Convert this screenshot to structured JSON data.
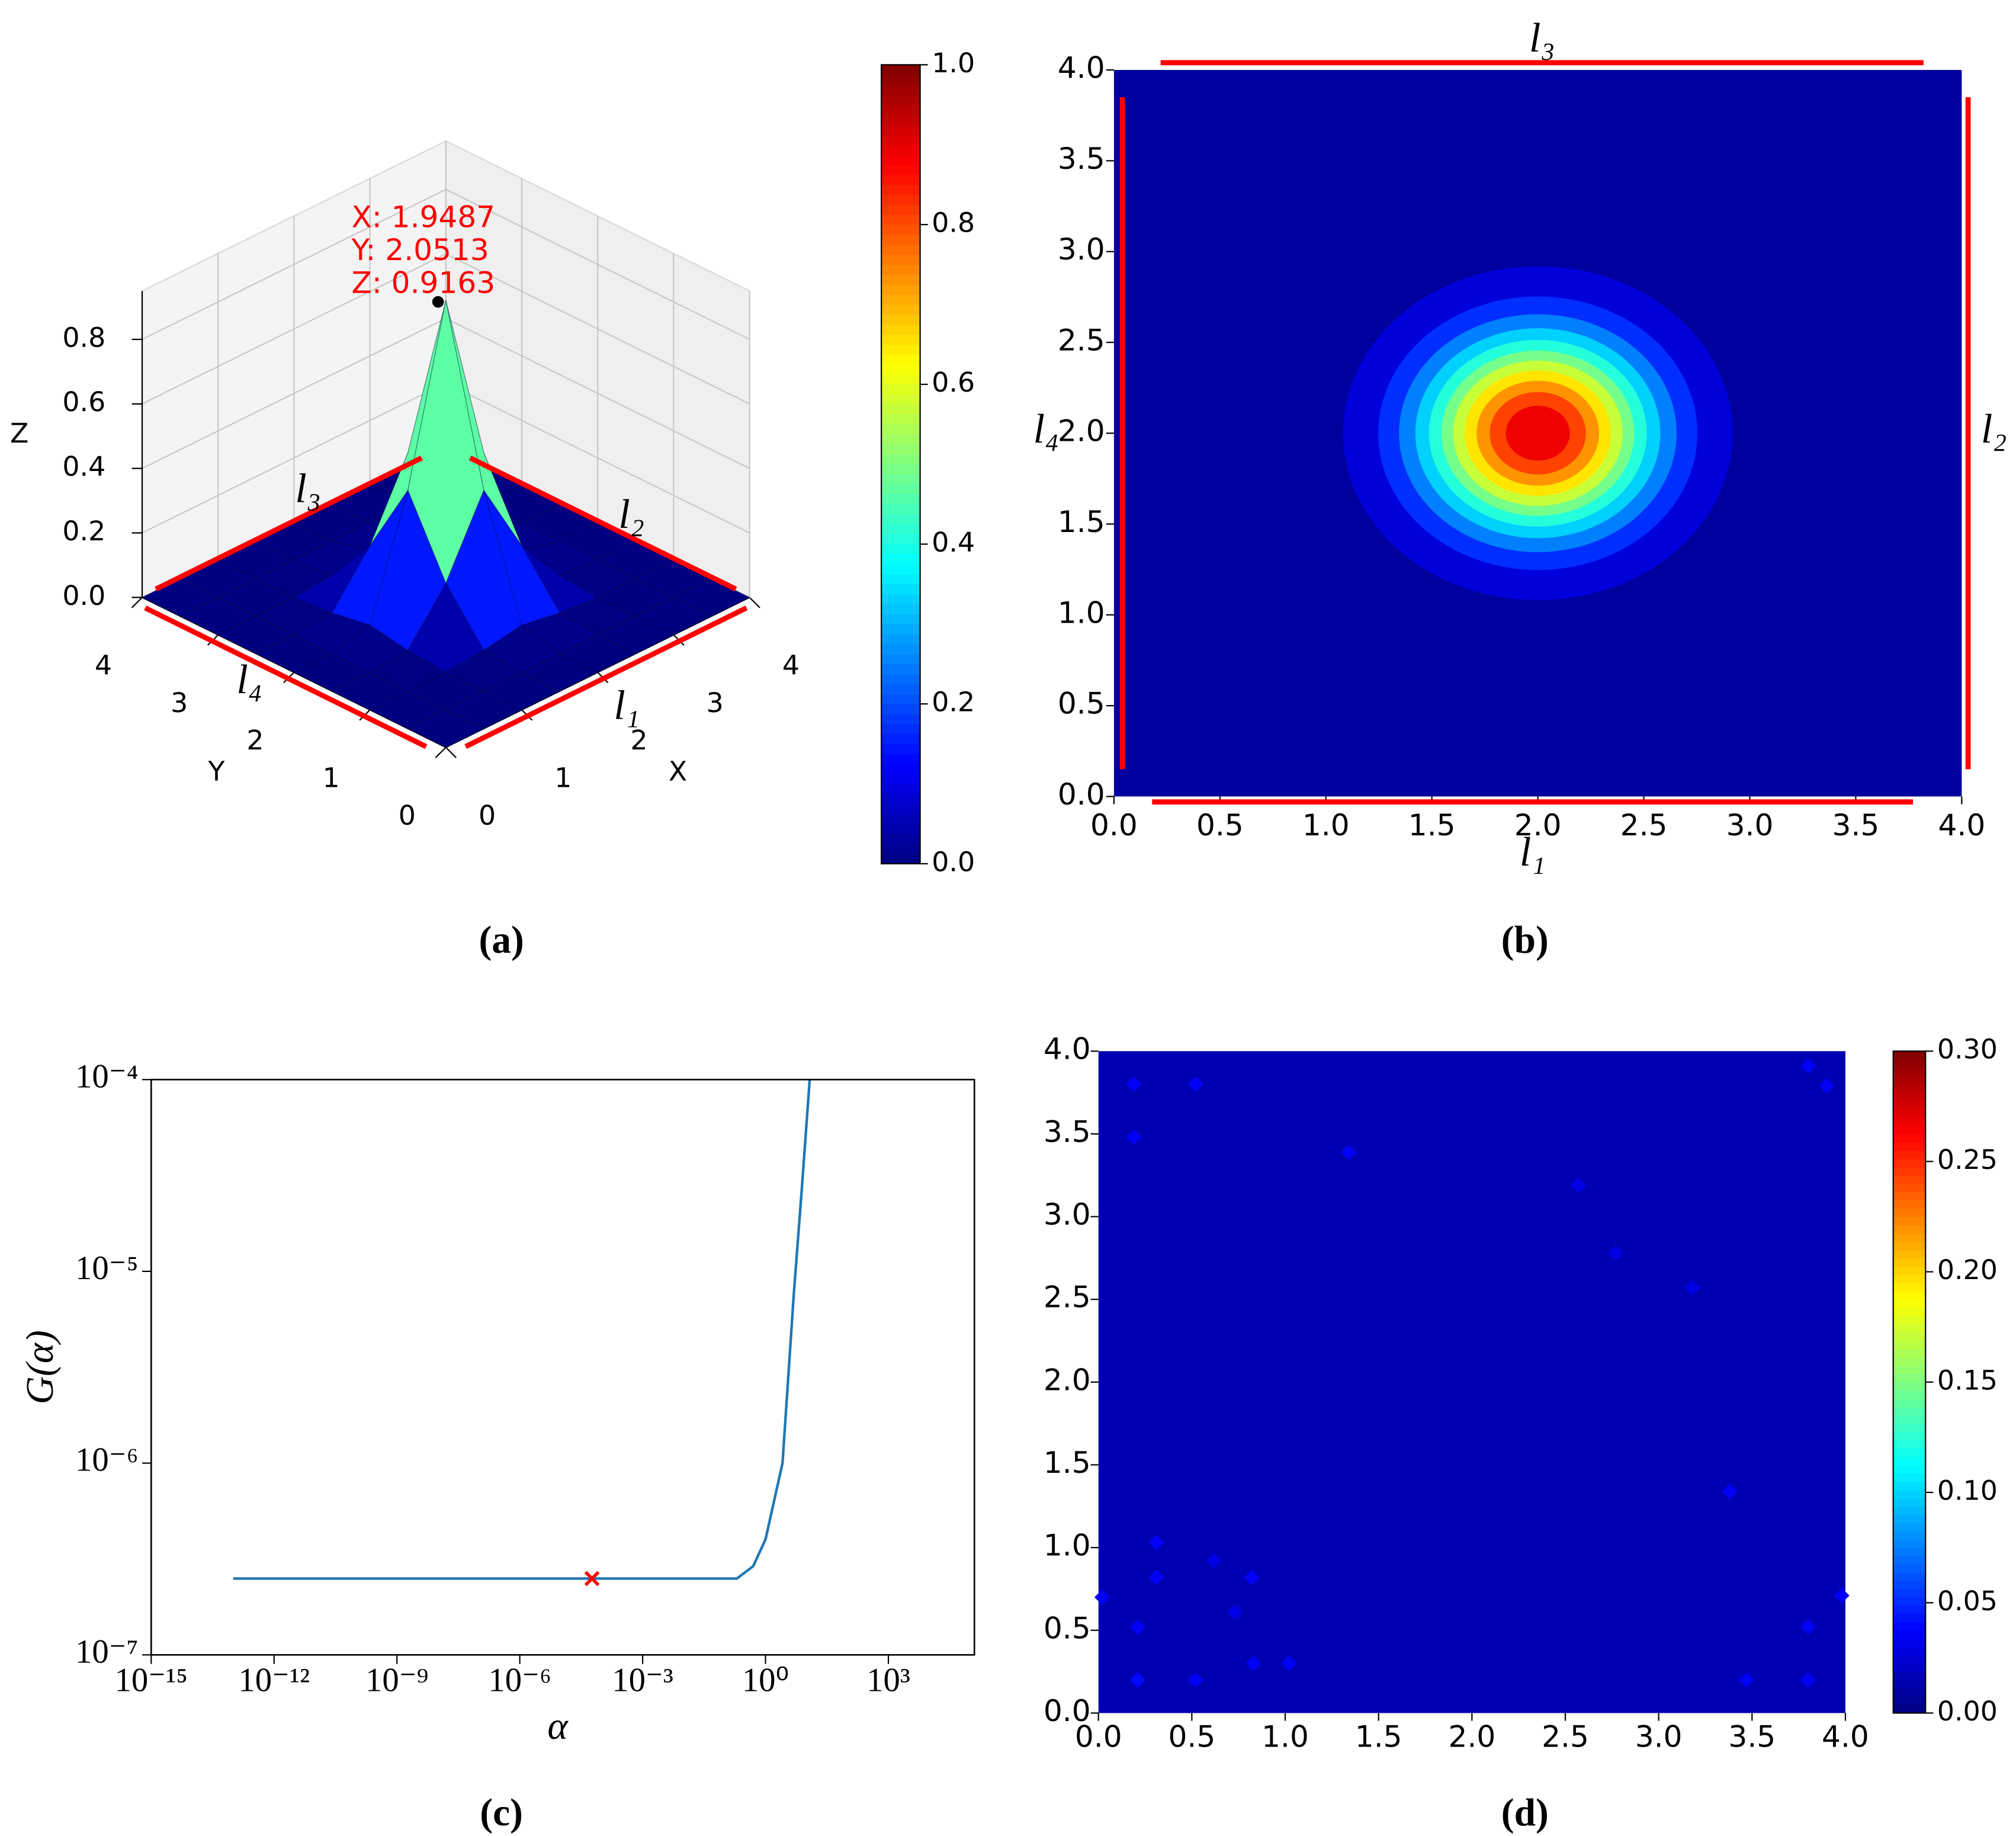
{
  "chart_data": [
    {
      "type": "surface",
      "panel_label": "(a)",
      "x": [
        0,
        0.5,
        1,
        1.5,
        2,
        2.5,
        3,
        3.5,
        4
      ],
      "y": [
        0,
        0.5,
        1,
        1.5,
        2,
        2.5,
        3,
        3.5,
        4
      ],
      "z": [
        [
          0,
          0,
          0,
          0,
          0,
          0,
          0,
          0,
          0
        ],
        [
          0,
          0,
          0,
          0,
          0,
          0,
          0,
          0,
          0
        ],
        [
          0,
          0,
          0,
          0.01,
          0.03,
          0.01,
          0,
          0,
          0
        ],
        [
          0,
          0,
          0.01,
          0.16,
          0.39,
          0.16,
          0.01,
          0,
          0
        ],
        [
          0,
          0,
          0.03,
          0.39,
          0.92,
          0.39,
          0.03,
          0,
          0
        ],
        [
          0,
          0,
          0.01,
          0.16,
          0.39,
          0.16,
          0.01,
          0,
          0
        ],
        [
          0,
          0,
          0,
          0.01,
          0.03,
          0.01,
          0,
          0,
          0
        ],
        [
          0,
          0,
          0,
          0,
          0,
          0,
          0,
          0,
          0
        ],
        [
          0,
          0,
          0,
          0,
          0,
          0,
          0,
          0,
          0
        ]
      ],
      "xlabel": "X",
      "ylabel": "Y",
      "zlabel": "Z",
      "xlim": [
        0,
        4
      ],
      "ylim": [
        0,
        4
      ],
      "zlim": [
        0,
        0.95
      ],
      "xticks": [
        0,
        1,
        2,
        3,
        4
      ],
      "yticks": [
        0,
        1,
        2,
        3,
        4
      ],
      "zticks": [
        {
          "value": 0,
          "label": "0.0"
        },
        0.2,
        0.4,
        0.6,
        0.8
      ],
      "colormap": "jet",
      "clim": [
        0,
        1
      ],
      "cticks": [
        {
          "value": 0,
          "label": "0.0"
        },
        0.2,
        0.4,
        0.6,
        0.8,
        {
          "value": 1,
          "label": "1.0"
        }
      ],
      "grid": true,
      "annotation": {
        "x": 1.9487,
        "y": 2.0513,
        "z": 0.9163,
        "labels": [
          "X: 1.9487",
          "Y: 2.0513",
          "Z: 0.9163"
        ],
        "color": "#ff0000"
      },
      "boundary_color": "#ff0000",
      "boundaries": [
        {
          "name": "l₁",
          "x": [
            0.14,
            3.84
          ],
          "y": [
            -0.12,
            -0.12
          ]
        },
        {
          "name": "l₂",
          "x": [
            4.02,
            4.02
          ],
          "y": [
            0.2,
            3.7
          ]
        },
        {
          "name": "l₃",
          "x": [
            0.2,
            3.7
          ],
          "y": [
            4.02,
            4.02
          ]
        },
        {
          "name": "l₄",
          "x": [
            -0.12,
            -0.12
          ],
          "y": [
            0.14,
            3.84
          ]
        }
      ]
    },
    {
      "type": "contour",
      "panel_label": "(b)",
      "xlim": [
        0,
        4
      ],
      "ylim": [
        0,
        4
      ],
      "xticks": [
        {
          "value": 0,
          "label": "0.0"
        },
        0.5,
        {
          "value": 1,
          "label": "1.0"
        },
        1.5,
        {
          "value": 2,
          "label": "2.0"
        },
        2.5,
        {
          "value": 3,
          "label": "3.0"
        },
        3.5,
        {
          "value": 4,
          "label": "4.0"
        }
      ],
      "yticks": [
        {
          "value": 0,
          "label": "0.0"
        },
        0.5,
        {
          "value": 1,
          "label": "1.0"
        },
        1.5,
        {
          "value": 2,
          "label": "2.0"
        },
        2.5,
        {
          "value": 3,
          "label": "3.0"
        },
        3.5,
        {
          "value": 4,
          "label": "4.0"
        }
      ],
      "colormap": "jet",
      "clim": [
        0,
        1
      ],
      "background": 0.03,
      "center": [
        2,
        2
      ],
      "contours": [
        {
          "value": 0.09,
          "radius": 0.919
        },
        {
          "value": 0.17,
          "radius": 0.753
        },
        {
          "value": 0.25,
          "radius": 0.655
        },
        {
          "value": 0.33,
          "radius": 0.578
        },
        {
          "value": 0.41,
          "radius": 0.514
        },
        {
          "value": 0.49,
          "radius": 0.455
        },
        {
          "value": 0.57,
          "radius": 0.4
        },
        {
          "value": 0.65,
          "radius": 0.345
        },
        {
          "value": 0.73,
          "radius": 0.289
        },
        {
          "value": 0.81,
          "radius": 0.227
        },
        {
          "value": 0.89,
          "radius": 0.151
        }
      ],
      "boundary_color": "#ff0000",
      "boundaries": [
        {
          "name": "l₁",
          "x": [
            0.18,
            3.77
          ],
          "y": [
            -0.03,
            -0.03
          ]
        },
        {
          "name": "l₂",
          "x": [
            4.03,
            4.03
          ],
          "y": [
            0.15,
            3.85
          ]
        },
        {
          "name": "l₃",
          "x": [
            0.22,
            3.82
          ],
          "y": [
            4.04,
            4.04
          ]
        },
        {
          "name": "l₄",
          "x": [
            0.04,
            0.04
          ],
          "y": [
            0.15,
            3.85
          ]
        }
      ]
    },
    {
      "type": "line",
      "panel_label": "(c)",
      "xlabel": "α",
      "ylabel": "G(α)",
      "log_x": true,
      "log_y": true,
      "xlim": [
        1e-15,
        126000
      ],
      "ylim": [
        1e-07,
        0.0001
      ],
      "xticks": [
        {
          "value": 1e-15,
          "label": "10⁻¹⁵"
        },
        {
          "value": 1e-12,
          "label": "10⁻¹²"
        },
        {
          "value": 1e-09,
          "label": "10⁻⁹"
        },
        {
          "value": 1e-06,
          "label": "10⁻⁶"
        },
        {
          "value": 0.001,
          "label": "10⁻³"
        },
        {
          "value": 1,
          "label": "10⁰"
        },
        {
          "value": 1000,
          "label": "10³"
        }
      ],
      "yticks": [
        {
          "value": 1e-07,
          "label": "10⁻⁷"
        },
        {
          "value": 1e-06,
          "label": "10⁻⁶"
        },
        {
          "value": 1e-05,
          "label": "10⁻⁵"
        },
        {
          "value": 0.0001,
          "label": "10⁻⁴"
        }
      ],
      "series": [
        {
          "color": "#1f77b4",
          "x": [
            1e-13,
            0.001,
            0.2,
            0.5,
            1,
            2.6,
            4.9,
            7.6,
            12
          ],
          "values": [
            2.5e-07,
            2.5e-07,
            2.5e-07,
            2.9e-07,
            4e-07,
            1e-06,
            7.6e-06,
            2.6e-05,
            0.0001
          ]
        }
      ],
      "marker": {
        "x": 5.8e-05,
        "y": 2.5e-07,
        "color": "#ff0000",
        "symbol": "x"
      }
    },
    {
      "type": "heatmap",
      "panel_label": "(d)",
      "xlim": [
        0,
        4
      ],
      "ylim": [
        0,
        4
      ],
      "xticks": [
        {
          "value": 0,
          "label": "0.0"
        },
        0.5,
        {
          "value": 1,
          "label": "1.0"
        },
        1.5,
        {
          "value": 2,
          "label": "2.0"
        },
        2.5,
        {
          "value": 3,
          "label": "3.0"
        },
        3.5,
        {
          "value": 4,
          "label": "4.0"
        }
      ],
      "yticks": [
        {
          "value": 0,
          "label": "0.0"
        },
        0.5,
        {
          "value": 1,
          "label": "1.0"
        },
        1.5,
        {
          "value": 2,
          "label": "2.0"
        },
        2.5,
        {
          "value": 3,
          "label": "3.0"
        },
        3.5,
        {
          "value": 4,
          "label": "4.0"
        }
      ],
      "colormap": "jet",
      "clim": [
        0,
        0.3
      ],
      "cticks": [
        {
          "value": 0,
          "label": "0.00"
        },
        0.05,
        {
          "value": 0.1,
          "label": "0.10"
        },
        0.15,
        {
          "value": 0.2,
          "label": "0.20"
        },
        0.25,
        {
          "value": 0.3,
          "label": "0.30"
        }
      ],
      "background": 0.015,
      "spots": [
        {
          "x": 0.19,
          "y": 3.8,
          "value": 0.035
        },
        {
          "x": 0.52,
          "y": 3.8,
          "value": 0.035
        },
        {
          "x": 0.19,
          "y": 3.48,
          "value": 0.035
        },
        {
          "x": 1.34,
          "y": 3.39,
          "value": 0.035
        },
        {
          "x": 2.57,
          "y": 3.19,
          "value": 0.03
        },
        {
          "x": 2.77,
          "y": 2.78,
          "value": 0.03
        },
        {
          "x": 3.18,
          "y": 2.57,
          "value": 0.03
        },
        {
          "x": 3.8,
          "y": 3.91,
          "value": 0.035
        },
        {
          "x": 3.9,
          "y": 3.79,
          "value": 0.035
        },
        {
          "x": 3.38,
          "y": 1.34,
          "value": 0.035
        },
        {
          "x": 0.31,
          "y": 1.03,
          "value": 0.035
        },
        {
          "x": 0.31,
          "y": 0.82,
          "value": 0.035
        },
        {
          "x": 0.62,
          "y": 0.92,
          "value": 0.03
        },
        {
          "x": 0.82,
          "y": 0.82,
          "value": 0.035
        },
        {
          "x": 0.73,
          "y": 0.61,
          "value": 0.03
        },
        {
          "x": 0.21,
          "y": 0.52,
          "value": 0.035
        },
        {
          "x": 0.02,
          "y": 0.7,
          "value": 0.035
        },
        {
          "x": 0.83,
          "y": 0.3,
          "value": 0.035
        },
        {
          "x": 1.02,
          "y": 0.3,
          "value": 0.035
        },
        {
          "x": 0.21,
          "y": 0.2,
          "value": 0.04
        },
        {
          "x": 0.52,
          "y": 0.2,
          "value": 0.035
        },
        {
          "x": 3.47,
          "y": 0.2,
          "value": 0.035
        },
        {
          "x": 3.8,
          "y": 0.2,
          "value": 0.035
        },
        {
          "x": 3.8,
          "y": 0.52,
          "value": 0.035
        },
        {
          "x": 3.98,
          "y": 0.71,
          "value": 0.035
        }
      ]
    }
  ]
}
